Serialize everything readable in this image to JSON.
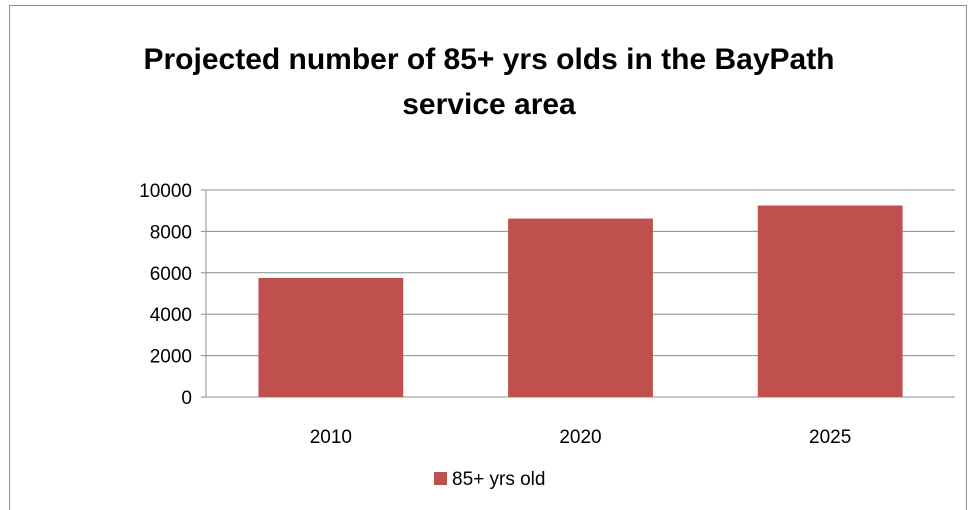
{
  "chart_data": {
    "type": "bar",
    "title_line1": "Projected number of 85+ yrs olds in the BayPath",
    "title_line2": "service area",
    "categories": [
      "2010",
      "2020",
      "2025"
    ],
    "series": [
      {
        "name": "85+ yrs old",
        "color": "#c0504d",
        "values": [
          5750,
          8620,
          9250
        ]
      }
    ],
    "ylim": [
      0,
      10000
    ],
    "yticks": [
      0,
      2000,
      4000,
      6000,
      8000,
      10000
    ],
    "grid": true,
    "legend": "bottom"
  }
}
